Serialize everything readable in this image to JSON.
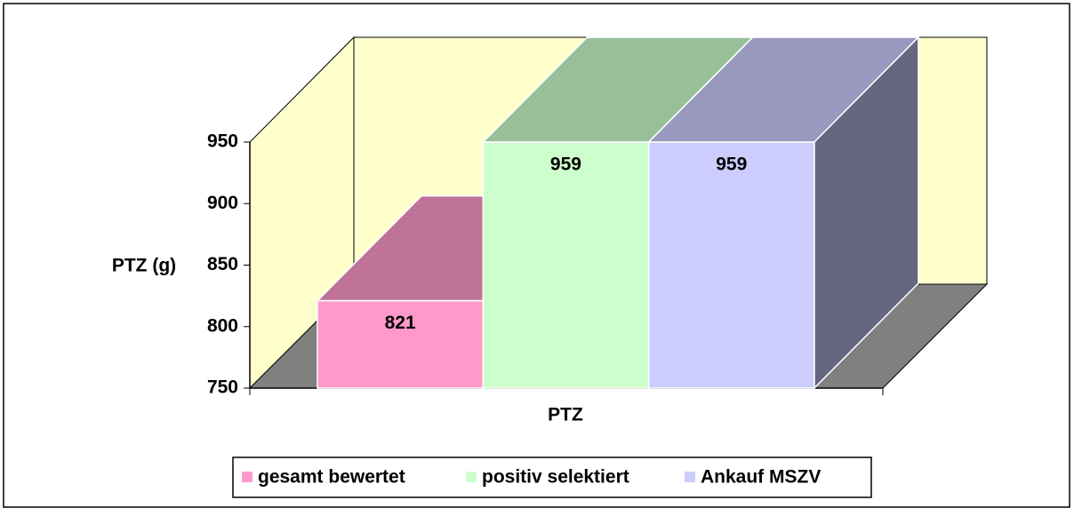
{
  "chart_data": {
    "type": "bar3d",
    "categories": [
      "PTZ"
    ],
    "series": [
      {
        "name": "gesamt bewertet",
        "color": "#ff99cc",
        "values": [
          821
        ]
      },
      {
        "name": "positiv selektiert",
        "color": "#ccffcc",
        "values": [
          959
        ]
      },
      {
        "name": "Ankauf MSZV",
        "color": "#ccccff",
        "values": [
          959
        ]
      }
    ],
    "y_label": "PTZ (g)",
    "x_label": "PTZ",
    "ylim": [
      750,
      950
    ],
    "yticks": [
      750,
      800,
      850,
      900,
      950
    ],
    "legend": "bottom"
  }
}
